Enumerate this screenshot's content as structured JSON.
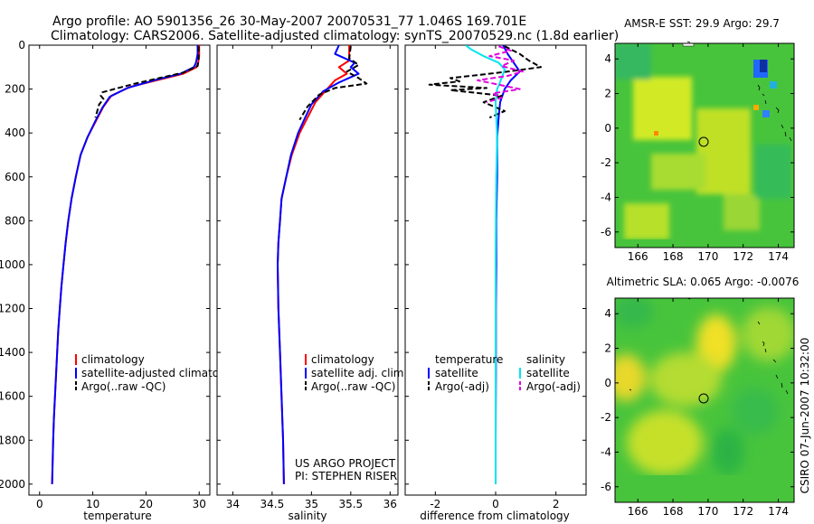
{
  "header": {
    "line1": "Argo profile: AO 5901356_26 30-May-2007 20070531_77 1.046S 169.701E",
    "line2": "Climatology: CARS2006. Satellite-adjusted climatology: synTS_20070529.nc (1.8d earlier)"
  },
  "side_text": "CSIRO 07-Jun-2007 10:32:00",
  "credit": [
    "US ARGO PROJECT",
    "PI: STEPHEN RISER"
  ],
  "colors": {
    "climatology": "#ff0000",
    "satellite": "#0000ff",
    "argo": "#000000",
    "sat_diff_salinity": "#00e5ee",
    "argo_diff_salinity": "#e000e0",
    "map_bg": "#48c43c"
  },
  "chart_data": [
    {
      "id": "temperature",
      "type": "line",
      "xlabel": "temperature",
      "xlim": [
        -2,
        32
      ],
      "ylim": [
        2050,
        0
      ],
      "xticks": [
        0,
        10,
        20,
        30
      ],
      "yticks": [
        0,
        200,
        400,
        600,
        800,
        1000,
        1200,
        1400,
        1600,
        1800,
        2000
      ],
      "legend": [
        "climatology",
        "satellite-adjusted climatology",
        "Argo(..raw -QC)"
      ],
      "series": [
        {
          "name": "climatology",
          "color": "#ff0000",
          "style": "solid",
          "points": [
            [
              30,
              0
            ],
            [
              30,
              50
            ],
            [
              29.8,
              80
            ],
            [
              29.5,
              100
            ],
            [
              27,
              130
            ],
            [
              22,
              160
            ],
            [
              17,
              190
            ],
            [
              13.5,
              230
            ],
            [
              12,
              280
            ],
            [
              10.5,
              350
            ],
            [
              9,
              420
            ],
            [
              7.7,
              500
            ],
            [
              6.8,
              600
            ],
            [
              6,
              700
            ],
            [
              5.4,
              800
            ],
            [
              4.9,
              900
            ],
            [
              4.5,
              1000
            ],
            [
              4.1,
              1100
            ],
            [
              3.8,
              1200
            ],
            [
              3.5,
              1300
            ],
            [
              3.3,
              1400
            ],
            [
              3.1,
              1500
            ],
            [
              2.9,
              1600
            ],
            [
              2.7,
              1700
            ],
            [
              2.55,
              1800
            ],
            [
              2.45,
              1900
            ],
            [
              2.35,
              2000
            ]
          ]
        },
        {
          "name": "satellite-adjusted climatology",
          "color": "#0000ff",
          "style": "solid",
          "points": [
            [
              29.7,
              0
            ],
            [
              29.7,
              40
            ],
            [
              29.4,
              80
            ],
            [
              29,
              100
            ],
            [
              26.5,
              130
            ],
            [
              21.5,
              160
            ],
            [
              16.5,
              195
            ],
            [
              13.2,
              235
            ],
            [
              11.8,
              285
            ],
            [
              10.4,
              350
            ],
            [
              9,
              420
            ],
            [
              7.7,
              500
            ],
            [
              6.8,
              600
            ],
            [
              6,
              700
            ],
            [
              5.4,
              800
            ],
            [
              4.9,
              900
            ],
            [
              4.5,
              1000
            ],
            [
              4.1,
              1100
            ],
            [
              3.8,
              1200
            ],
            [
              3.5,
              1300
            ],
            [
              3.3,
              1400
            ],
            [
              3.1,
              1500
            ],
            [
              2.9,
              1600
            ],
            [
              2.7,
              1700
            ],
            [
              2.55,
              1800
            ],
            [
              2.45,
              1900
            ],
            [
              2.35,
              2000
            ]
          ]
        },
        {
          "name": "Argo(..raw -QC)",
          "color": "#000000",
          "style": "dashed",
          "points": [
            [
              29.9,
              5
            ],
            [
              29.9,
              70
            ],
            [
              29.7,
              95
            ],
            [
              27,
              125
            ],
            [
              22.5,
              150
            ],
            [
              18,
              175
            ],
            [
              14,
              200
            ],
            [
              11.8,
              215
            ],
            [
              11.5,
              230
            ],
            [
              12,
              245
            ],
            [
              11.2,
              270
            ],
            [
              10.5,
              330
            ]
          ]
        }
      ]
    },
    {
      "id": "salinity",
      "type": "line",
      "xlabel": "salinity",
      "xlim": [
        33.8,
        36.1
      ],
      "ylim": [
        2050,
        0
      ],
      "xticks": [
        34,
        34.5,
        35,
        35.5,
        36
      ],
      "legend": [
        "climatology",
        "satellite adj. clim.",
        "Argo(..raw -QC)"
      ],
      "series": [
        {
          "name": "climatology",
          "color": "#ff0000",
          "style": "solid",
          "points": [
            [
              35.48,
              0
            ],
            [
              35.48,
              70
            ],
            [
              35.35,
              100
            ],
            [
              35.45,
              130
            ],
            [
              35.3,
              160
            ],
            [
              35.2,
              200
            ],
            [
              35.05,
              260
            ],
            [
              34.95,
              330
            ],
            [
              34.85,
              400
            ],
            [
              34.75,
              500
            ],
            [
              34.68,
              600
            ],
            [
              34.62,
              700
            ],
            [
              34.6,
              800
            ],
            [
              34.58,
              900
            ],
            [
              34.57,
              1000
            ],
            [
              34.58,
              1200
            ],
            [
              34.6,
              1400
            ],
            [
              34.62,
              1600
            ],
            [
              34.64,
              1800
            ],
            [
              34.65,
              2000
            ]
          ]
        },
        {
          "name": "satellite adj. clim.",
          "color": "#0000ff",
          "style": "solid",
          "points": [
            [
              35.35,
              0
            ],
            [
              35.3,
              40
            ],
            [
              35.55,
              80
            ],
            [
              35.5,
              100
            ],
            [
              35.6,
              130
            ],
            [
              35.35,
              170
            ],
            [
              35.15,
              210
            ],
            [
              35.0,
              270
            ],
            [
              34.92,
              330
            ],
            [
              34.83,
              400
            ],
            [
              34.74,
              500
            ],
            [
              34.68,
              600
            ],
            [
              34.62,
              700
            ],
            [
              34.6,
              800
            ],
            [
              34.58,
              900
            ],
            [
              34.57,
              1000
            ],
            [
              34.58,
              1200
            ],
            [
              34.6,
              1400
            ],
            [
              34.62,
              1600
            ],
            [
              34.64,
              1800
            ],
            [
              34.65,
              2000
            ]
          ]
        },
        {
          "name": "Argo(..raw -QC)",
          "color": "#000000",
          "style": "dashed",
          "points": [
            [
              35.5,
              5
            ],
            [
              35.48,
              60
            ],
            [
              35.6,
              90
            ],
            [
              35.45,
              120
            ],
            [
              35.6,
              150
            ],
            [
              35.7,
              175
            ],
            [
              35.3,
              195
            ],
            [
              35.1,
              225
            ],
            [
              34.95,
              280
            ],
            [
              34.85,
              340
            ]
          ]
        }
      ]
    },
    {
      "id": "difference",
      "type": "line",
      "xlabel": "difference from climatology",
      "xlim": [
        -3,
        3
      ],
      "ylim": [
        2050,
        0
      ],
      "xticks": [
        -2,
        0,
        2
      ],
      "legend": [
        "temperature",
        "satellite",
        "Argo(-adj)",
        "salinity",
        "satellite",
        "Argo(-adj)"
      ],
      "series": [
        {
          "name": "satellite",
          "color": "#0000ff",
          "style": "solid",
          "points": [
            [
              0.25,
              0
            ],
            [
              0.4,
              40
            ],
            [
              0.6,
              80
            ],
            [
              0.8,
              120
            ],
            [
              0.5,
              160
            ],
            [
              0.3,
              200
            ],
            [
              0.15,
              260
            ],
            [
              0.1,
              330
            ],
            [
              0.05,
              420
            ],
            [
              0.05,
              600
            ],
            [
              0.02,
              800
            ],
            [
              0.02,
              1000
            ],
            [
              0.01,
              1200
            ],
            [
              0.01,
              1500
            ],
            [
              0.0,
              1800
            ],
            [
              0.0,
              2000
            ]
          ]
        },
        {
          "name": "Argo(-adj)",
          "color": "#000000",
          "style": "dashed",
          "points": [
            [
              0.3,
              5
            ],
            [
              0.8,
              40
            ],
            [
              1.1,
              70
            ],
            [
              1.5,
              100
            ],
            [
              0.4,
              120
            ],
            [
              -0.5,
              135
            ],
            [
              -1.5,
              150
            ],
            [
              -1.2,
              165
            ],
            [
              -2.2,
              180
            ],
            [
              -0.3,
              195
            ],
            [
              -1.5,
              205
            ],
            [
              -0.8,
              215
            ],
            [
              0.2,
              230
            ],
            [
              -0.4,
              260
            ],
            [
              0.3,
              300
            ],
            [
              -0.2,
              330
            ]
          ]
        },
        {
          "name": "satellite",
          "color": "#00e5ee",
          "style": "solid",
          "points": [
            [
              -1.0,
              0
            ],
            [
              -0.8,
              20
            ],
            [
              -0.4,
              50
            ],
            [
              0.1,
              80
            ],
            [
              0.3,
              110
            ],
            [
              0.2,
              150
            ],
            [
              0.05,
              200
            ],
            [
              0.0,
              260
            ],
            [
              0.02,
              330
            ],
            [
              0.05,
              420
            ],
            [
              0.02,
              600
            ],
            [
              0.01,
              800
            ],
            [
              0.0,
              1000
            ],
            [
              0.0,
              1500
            ],
            [
              0.0,
              2000
            ]
          ]
        },
        {
          "name": "Argo(-adj)",
          "color": "#e000e0",
          "style": "dashed",
          "points": [
            [
              0.1,
              5
            ],
            [
              0.5,
              25
            ],
            [
              -0.2,
              50
            ],
            [
              0.6,
              70
            ],
            [
              0.2,
              95
            ],
            [
              0.9,
              120
            ],
            [
              0.4,
              140
            ],
            [
              -0.6,
              160
            ],
            [
              0.1,
              180
            ],
            [
              0.8,
              200
            ],
            [
              -0.1,
              220
            ],
            [
              0.2,
              240
            ],
            [
              -0.3,
              260
            ]
          ]
        }
      ]
    },
    {
      "id": "sst_map",
      "type": "heatmap",
      "title": "AMSR-E SST: 29.9 Argo: 29.7",
      "xlim": [
        164.7,
        174.9
      ],
      "ylim": [
        -6.9,
        4.9
      ],
      "xticks": [
        166,
        168,
        170,
        172,
        174
      ],
      "yticks": [
        -6,
        -4,
        -2,
        0,
        2,
        4
      ],
      "argo_position": {
        "lon": 169.701,
        "lat": -1.046
      }
    },
    {
      "id": "sla_map",
      "type": "heatmap",
      "title": "Altimetric SLA: 0.065 Argo: -0.0076",
      "xlim": [
        164.7,
        174.9
      ],
      "ylim": [
        -6.9,
        4.9
      ],
      "xticks": [
        166,
        168,
        170,
        172,
        174
      ],
      "yticks": [
        -6,
        -4,
        -2,
        0,
        2,
        4
      ],
      "argo_position": {
        "lon": 169.701,
        "lat": -1.046
      }
    }
  ]
}
